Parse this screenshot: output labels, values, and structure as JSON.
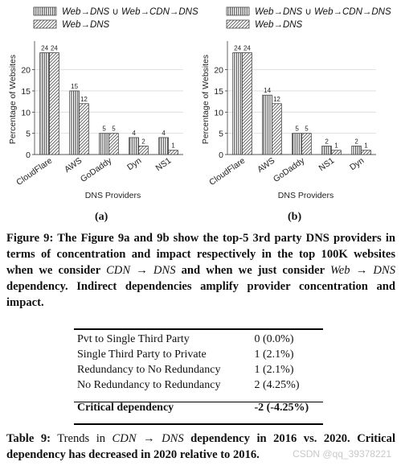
{
  "figure": {
    "legend_items": [
      "Web→DNS ∪ Web→CDN→DNS",
      "Web→DNS"
    ],
    "panel_labels": [
      "(a)",
      "(b)"
    ],
    "caption_prefix": "Figure 9:",
    "caption_parts": [
      "The Figure 9a and 9b show the top-5 3rd party DNS providers in terms of concentration and impact respectively in the top 100K websites when we consider ",
      "CDN → DNS",
      " and when we just consider ",
      "Web → DNS",
      " dependency. Indirect dependencies amplify provider concentration and impact."
    ]
  },
  "chart_data": [
    {
      "type": "bar",
      "panel": "(a)",
      "xlabel": "DNS Providers",
      "ylabel": "Percentage of Websites",
      "ylim": [
        0,
        26
      ],
      "yticks": [
        0,
        5,
        10,
        15,
        20
      ],
      "grid": true,
      "legend": "top",
      "categories": [
        "CloudFlare",
        "AWS",
        "GoDaddy",
        "Dyn",
        "NS1"
      ],
      "series": [
        {
          "name": "Web→DNS ∪ Web→CDN→DNS",
          "values": [
            24,
            15,
            5,
            4,
            4
          ],
          "labels": [
            "24",
            "15",
            "5",
            "4",
            "4"
          ]
        },
        {
          "name": "Web→DNS",
          "values": [
            24,
            12,
            5,
            2,
            1
          ],
          "labels": [
            "24",
            "12",
            "5",
            "2",
            "1"
          ]
        }
      ]
    },
    {
      "type": "bar",
      "panel": "(b)",
      "xlabel": "DNS Providers",
      "ylabel": "Percentage of Websites",
      "ylim": [
        0,
        26
      ],
      "yticks": [
        0,
        5,
        10,
        15,
        20
      ],
      "grid": true,
      "legend": "top",
      "categories": [
        "CloudFlare",
        "AWS",
        "GoDaddy",
        "NS1",
        "Dyn"
      ],
      "series": [
        {
          "name": "Web→DNS ∪ Web→CDN→DNS",
          "values": [
            24,
            14,
            5,
            2,
            2
          ],
          "labels": [
            "24",
            "14",
            "5",
            "2",
            "2"
          ]
        },
        {
          "name": "Web→DNS",
          "values": [
            24,
            12,
            5,
            1,
            1
          ],
          "labels": [
            "24",
            "12",
            "5",
            "1",
            "1"
          ]
        }
      ]
    }
  ],
  "table": {
    "rows": [
      {
        "label": "Pvt to Single Third Party",
        "value": "0 (0.0%)"
      },
      {
        "label": "Single Third Party to Private",
        "value": "1 (2.1%)"
      },
      {
        "label": "Redundancy to No Redundancy",
        "value": "1 (2.1%)"
      },
      {
        "label": "No Redundancy to Redundancy",
        "value": "2 (4.25%)"
      }
    ],
    "total": {
      "label": "Critical dependency",
      "value": "-2 (-4.25%)"
    },
    "caption_prefix": "Table 9:",
    "caption_parts": [
      " Trends in ",
      "CDN → DNS",
      " dependency in 2016 vs. 2020. Critical dependency has decreased in 2020 relative to 2016."
    ]
  },
  "watermark": "CSDN @qq_39378221",
  "colors": {
    "bar_stroke": "#444444",
    "grid": "#d8d8d8"
  }
}
